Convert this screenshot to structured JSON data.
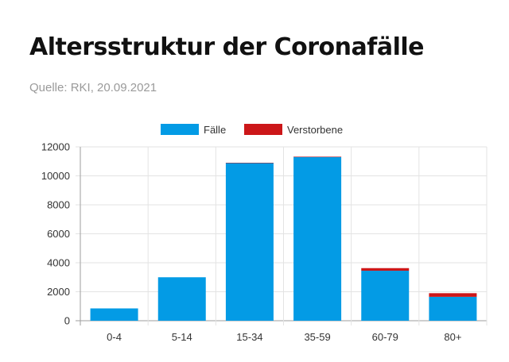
{
  "header": {
    "title": "Altersstruktur der Coronafälle",
    "source": "Quelle: RKI, 20.09.2021"
  },
  "colors": {
    "cases": "#039be5",
    "deaths": "#cc1719",
    "grid": "#e3e3e3",
    "axis": "#9e9e9e"
  },
  "chart_data": {
    "type": "bar",
    "stacked": true,
    "categories": [
      "0-4",
      "5-14",
      "15-34",
      "35-59",
      "60-79",
      "80+"
    ],
    "series": [
      {
        "name": "Fälle",
        "values": [
          850,
          3000,
          10900,
          11300,
          3450,
          1650
        ]
      },
      {
        "name": "Verstorbene",
        "values": [
          0,
          0,
          5,
          30,
          180,
          250
        ]
      }
    ],
    "yticks": [
      0,
      2000,
      4000,
      6000,
      8000,
      10000,
      12000
    ],
    "ylim": [
      0,
      12000
    ],
    "legend_position": "top",
    "grid": true
  }
}
